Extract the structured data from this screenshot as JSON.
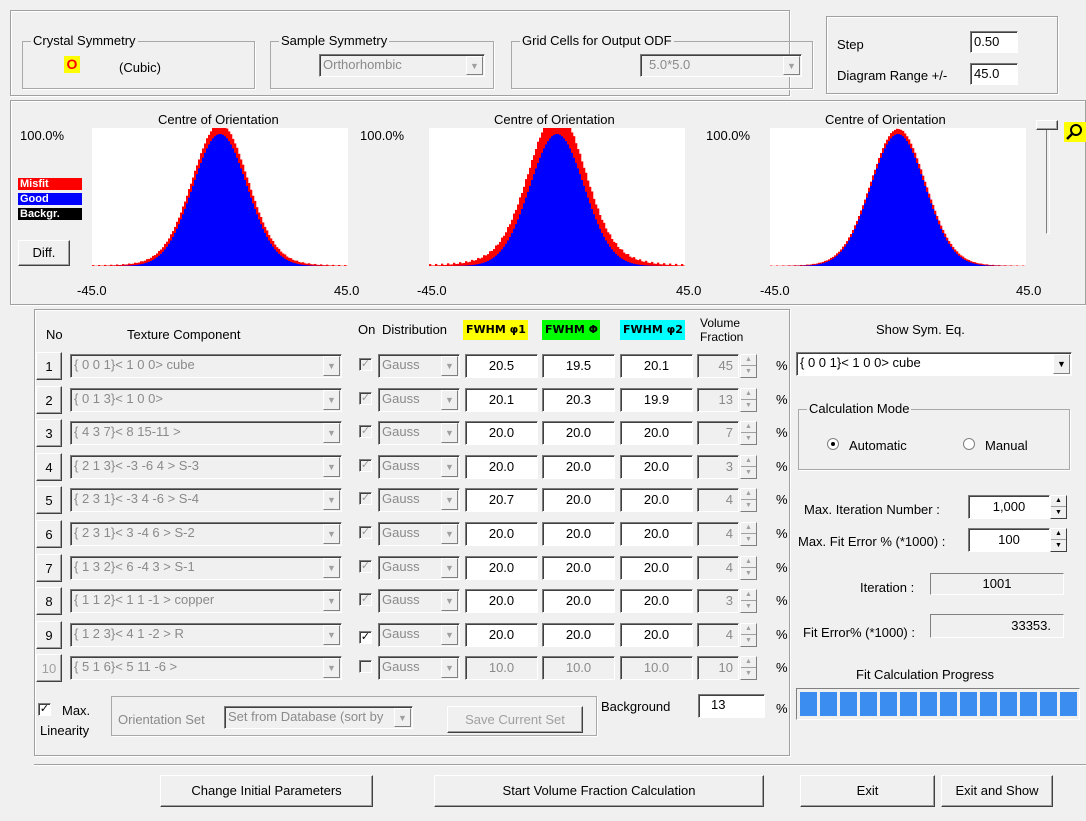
{
  "crystal_symmetry": {
    "title": "Crystal Symmetry",
    "symbol": "O",
    "name": "(Cubic)"
  },
  "sample_symmetry": {
    "title": "Sample Symmetry",
    "value": "Orthorhombic"
  },
  "grid_cells": {
    "title": "Grid Cells for Output ODF",
    "value": "5.0*5.0"
  },
  "step": {
    "label": "Step",
    "value": "0.50"
  },
  "diagram_range": {
    "label": "Diagram Range +/-",
    "value": "45.0"
  },
  "plots": [
    {
      "title": "Centre of Orientation",
      "ymax": "100.0%",
      "xmin": "-45.0",
      "xmax": "45.0",
      "misfit_spread": 1.2
    },
    {
      "title": "Centre of Orientation",
      "ymax": "100.0%",
      "xmin": "-45.0",
      "xmax": "45.0",
      "misfit_spread": 2.6
    },
    {
      "title": "Centre of Orientation",
      "ymax": "100.0%",
      "xmin": "-45.0",
      "xmax": "45.0",
      "misfit_spread": 0.6
    }
  ],
  "legend": {
    "misfit": "Misfit",
    "good": "Good",
    "backgr": "Backgr.",
    "diff": "Diff."
  },
  "colors": {
    "misfit": "#ff0000",
    "good": "#0000ff",
    "backgr": "#000000",
    "phi1": "#ffff00",
    "Phi": "#00ff00",
    "phi2": "#00ffff",
    "progress": "#3b8df0"
  },
  "table": {
    "headers": {
      "no": "No",
      "component": "Texture Component",
      "on": "On",
      "distribution": "Distribution",
      "fwhm_phi1": "FWHM φ1",
      "fwhm_Phi": "FWHM Φ",
      "fwhm_phi2": "FWHM φ2",
      "volume": "Volume",
      "fraction": "Fraction"
    },
    "rows": [
      {
        "no": "1",
        "component": "{ 0  0  1}< 1  0  0> cube",
        "on": true,
        "dist": "Gauss",
        "phi1": "20.5",
        "Phi": "19.5",
        "phi2": "20.1",
        "vf": "45",
        "pct": "%"
      },
      {
        "no": "2",
        "component": "{ 0  1  3}< 1  0  0>",
        "on": true,
        "dist": "Gauss",
        "phi1": "20.1",
        "Phi": "20.3",
        "phi2": "19.9",
        "vf": "13",
        "pct": "%"
      },
      {
        "no": "3",
        "component": "{ 4  3  7}< 8 15-11 >",
        "on": true,
        "dist": "Gauss",
        "phi1": "20.0",
        "Phi": "20.0",
        "phi2": "20.0",
        "vf": "7",
        "pct": "%"
      },
      {
        "no": "4",
        "component": "{ 2  1  3}< -3  -6  4 > S-3",
        "on": true,
        "dist": "Gauss",
        "phi1": "20.0",
        "Phi": "20.0",
        "phi2": "20.0",
        "vf": "3",
        "pct": "%"
      },
      {
        "no": "5",
        "component": "{ 2  3  1}< -3  4 -6 > S-4",
        "on": true,
        "dist": "Gauss",
        "phi1": "20.7",
        "Phi": "20.0",
        "phi2": "20.0",
        "vf": "4",
        "pct": "%"
      },
      {
        "no": "6",
        "component": "{ 2  3  1}< 3  -4  6 > S-2",
        "on": true,
        "dist": "Gauss",
        "phi1": "20.0",
        "Phi": "20.0",
        "phi2": "20.0",
        "vf": "4",
        "pct": "%"
      },
      {
        "no": "7",
        "component": "{ 1  3  2}< 6  -4  3 > S-1",
        "on": true,
        "dist": "Gauss",
        "phi1": "20.0",
        "Phi": "20.0",
        "phi2": "20.0",
        "vf": "4",
        "pct": "%"
      },
      {
        "no": "8",
        "component": "{ 1  1  2}< 1  1 -1 > copper",
        "on": true,
        "dist": "Gauss",
        "phi1": "20.0",
        "Phi": "20.0",
        "phi2": "20.0",
        "vf": "3",
        "pct": "%"
      },
      {
        "no": "9",
        "component": "{ 1  2  3}< 4  1 -2 > R",
        "on": true,
        "dist": "Gauss",
        "phi1": "20.0",
        "Phi": "20.0",
        "phi2": "20.0",
        "vf": "4",
        "pct": "%"
      },
      {
        "no": "10",
        "component": "{ 5  1  6}< 5  11 -6 >",
        "on": false,
        "dist": "Gauss",
        "phi1": "10.0",
        "Phi": "10.0",
        "phi2": "10.0",
        "vf": "10",
        "pct": "%"
      }
    ]
  },
  "background": {
    "label": "Background",
    "value": "13",
    "pct": "%"
  },
  "max_linearity": {
    "line1": "Max.",
    "line2": "Linearity",
    "checked": true
  },
  "orientation_set": {
    "label": "Orientation Set",
    "value": "Set from Database (sort by",
    "save": "Save Current Set"
  },
  "show_sym": {
    "label": "Show Sym. Eq.",
    "value": "{ 0  0  1}< 1  0  0> cube"
  },
  "calc_mode": {
    "title": "Calculation Mode",
    "automatic": "Automatic",
    "manual": "Manual",
    "selected": "Automatic"
  },
  "max_iter": {
    "label": "Max. Iteration Number :",
    "value": "1,000"
  },
  "max_fit": {
    "label": "Max. Fit Error % (*1000) :",
    "value": "100"
  },
  "iteration": {
    "label": "Iteration :",
    "value": "1001"
  },
  "fit_error": {
    "label": "Fit Error% (*1000) :",
    "value": "33353."
  },
  "progress": {
    "label": "Fit Calculation Progress",
    "fraction": 1.0,
    "segments": 14
  },
  "buttons": {
    "change": "Change Initial Parameters",
    "start": "Start Volume Fraction Calculation",
    "exit": "Exit",
    "exit_show": "Exit and Show"
  }
}
